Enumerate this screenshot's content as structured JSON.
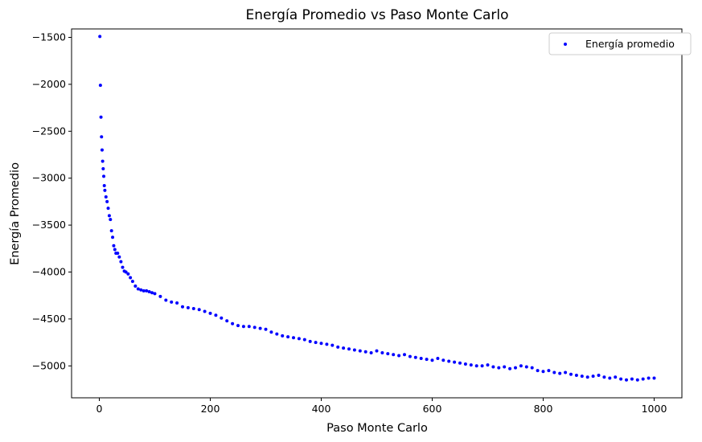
{
  "chart_data": {
    "type": "scatter",
    "title": "Energía Promedio vs Paso Monte Carlo",
    "xlabel": "Paso Monte Carlo",
    "ylabel": "Energía Promedio",
    "xlim": [
      -50,
      1050
    ],
    "ylim": [
      -5340,
      -1410
    ],
    "xticks": [
      0,
      200,
      400,
      600,
      800,
      1000
    ],
    "xtick_labels": [
      "0",
      "200",
      "400",
      "600",
      "800",
      "1000"
    ],
    "yticks": [
      -1500,
      -2000,
      -2500,
      -3000,
      -3500,
      -4000,
      -4500,
      -5000
    ],
    "ytick_labels": [
      "−1500",
      "−2000",
      "−2500",
      "−3000",
      "−3500",
      "−4000",
      "−4500",
      "−5000"
    ],
    "legend_position": "top-right",
    "grid": false,
    "series": [
      {
        "name": "Energía promedio",
        "color": "#0000ff",
        "marker": "dot",
        "x": [
          1,
          2,
          3,
          4,
          5,
          6,
          7,
          8,
          9,
          10,
          12,
          14,
          16,
          18,
          20,
          22,
          24,
          26,
          28,
          30,
          33,
          36,
          39,
          42,
          45,
          48,
          52,
          56,
          60,
          65,
          70,
          75,
          80,
          85,
          90,
          95,
          100,
          110,
          120,
          130,
          140,
          150,
          160,
          170,
          180,
          190,
          200,
          210,
          220,
          230,
          240,
          250,
          260,
          270,
          280,
          290,
          300,
          310,
          320,
          330,
          340,
          350,
          360,
          370,
          380,
          390,
          400,
          410,
          420,
          430,
          440,
          450,
          460,
          470,
          480,
          490,
          500,
          510,
          520,
          530,
          540,
          550,
          560,
          570,
          580,
          590,
          600,
          610,
          620,
          630,
          640,
          650,
          660,
          670,
          680,
          690,
          700,
          710,
          720,
          730,
          740,
          750,
          760,
          770,
          780,
          790,
          800,
          810,
          820,
          830,
          840,
          850,
          860,
          870,
          880,
          890,
          900,
          910,
          920,
          930,
          940,
          950,
          960,
          970,
          980,
          990,
          1000
        ],
        "y": [
          -1490,
          -2010,
          -2350,
          -2560,
          -2700,
          -2820,
          -2900,
          -2980,
          -3080,
          -3130,
          -3200,
          -3250,
          -3320,
          -3400,
          -3440,
          -3560,
          -3630,
          -3720,
          -3760,
          -3800,
          -3800,
          -3840,
          -3890,
          -3950,
          -3990,
          -4000,
          -4020,
          -4060,
          -4100,
          -4150,
          -4180,
          -4190,
          -4200,
          -4200,
          -4210,
          -4220,
          -4230,
          -4260,
          -4300,
          -4320,
          -4330,
          -4370,
          -4380,
          -4390,
          -4400,
          -4420,
          -4440,
          -4460,
          -4490,
          -4520,
          -4550,
          -4570,
          -4580,
          -4580,
          -4590,
          -4600,
          -4610,
          -4640,
          -4660,
          -4680,
          -4690,
          -4700,
          -4710,
          -4720,
          -4740,
          -4750,
          -4760,
          -4770,
          -4780,
          -4800,
          -4810,
          -4820,
          -4830,
          -4840,
          -4850,
          -4860,
          -4840,
          -4860,
          -4870,
          -4880,
          -4890,
          -4880,
          -4900,
          -4910,
          -4920,
          -4930,
          -4940,
          -4920,
          -4940,
          -4950,
          -4960,
          -4970,
          -4980,
          -4990,
          -5000,
          -5000,
          -4990,
          -5010,
          -5020,
          -5010,
          -5030,
          -5020,
          -5000,
          -5010,
          -5020,
          -5050,
          -5060,
          -5050,
          -5070,
          -5080,
          -5070,
          -5090,
          -5100,
          -5110,
          -5120,
          -5110,
          -5100,
          -5120,
          -5130,
          -5120,
          -5140,
          -5150,
          -5140,
          -5150,
          -5140,
          -5130,
          -5130
        ]
      }
    ]
  }
}
